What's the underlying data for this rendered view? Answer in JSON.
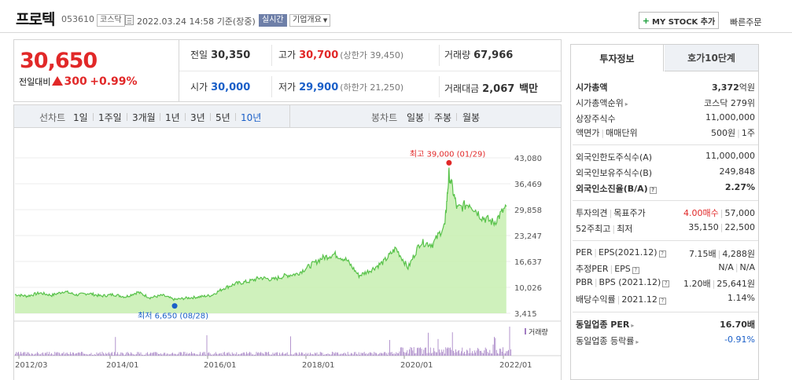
{
  "header": {
    "stock_name": "프로텍",
    "stock_code": "053610",
    "market": "코스닥",
    "time": "2022.03.24 14:58",
    "basis": "기준(장중)",
    "realtime": "실시간",
    "overview": "기업개요",
    "mystock": "MY STOCK 추가",
    "quick_order": "빠른주문"
  },
  "price": {
    "current": "30,650",
    "diff_label": "전일대비",
    "diff_value": "300",
    "diff_pct": "+0.99%"
  },
  "quote": {
    "prev_label": "전일",
    "prev_value": "30,350",
    "high_label": "고가",
    "high_value": "30,700",
    "upper_limit": "(상한가 39,450)",
    "volume_label": "거래량",
    "volume_value": "67,966",
    "open_label": "시가",
    "open_value": "30,000",
    "low_label": "저가",
    "low_value": "29,900",
    "lower_limit": "(하한가 21,250)",
    "amount_label": "거래대금",
    "amount_value": "2,067",
    "amount_unit": "백만"
  },
  "period_bar": {
    "line_label": "선차트",
    "line_periods": [
      "1일",
      "1주일",
      "3개월",
      "1년",
      "3년",
      "5년",
      "10년"
    ],
    "candle_label": "봉차트",
    "candle_periods": [
      "일봉",
      "주봉",
      "월봉"
    ]
  },
  "chart_data": {
    "type": "area",
    "y_ticks": [
      "43,080",
      "36,469",
      "29,858",
      "23,247",
      "16,637",
      "10,026",
      "3,415"
    ],
    "ylim": [
      3415,
      43080
    ],
    "x_ticks": [
      "2012/03",
      "2014/01",
      "2016/01",
      "2018/01",
      "2020/01",
      "2022/01"
    ],
    "high_annotation": "최고 39,000 (01/29)",
    "low_annotation": "최저 6,650 (08/28)",
    "volume_legend": "거래량",
    "series": [
      {
        "x": [
          "2012-03",
          "2012-06",
          "2012-09",
          "2012-12",
          "2013-03",
          "2013-06",
          "2013-09",
          "2013-12",
          "2014-03",
          "2014-06",
          "2014-09",
          "2014-12",
          "2015-03",
          "2015-06",
          "2015-09",
          "2015-12",
          "2016-03",
          "2016-06",
          "2016-09",
          "2016-12",
          "2017-03",
          "2017-06",
          "2017-09",
          "2017-12",
          "2018-03",
          "2018-06",
          "2018-09",
          "2018-12",
          "2019-03",
          "2019-06",
          "2019-09",
          "2019-12",
          "2020-03",
          "2020-06",
          "2020-09",
          "2020-12",
          "2021-01",
          "2021-03",
          "2021-06",
          "2021-09",
          "2021-12",
          "2022-03"
        ],
        "values": [
          8200,
          7800,
          8600,
          8000,
          9000,
          8100,
          8500,
          7800,
          8200,
          7600,
          8800,
          7400,
          8000,
          6900,
          7300,
          7600,
          8000,
          9800,
          11000,
          11500,
          12500,
          12000,
          13000,
          13500,
          15500,
          17500,
          18500,
          17000,
          13000,
          14500,
          16500,
          20000,
          15000,
          21500,
          21000,
          26000,
          39000,
          30000,
          31500,
          28000,
          26500,
          30650
        ]
      }
    ]
  },
  "side": {
    "tab_info": "투자정보",
    "tab_hoga": "호가10단계",
    "rows": [
      {
        "l": "시가총액",
        "r1": "3,372",
        "r2": "억원"
      },
      {
        "l": "시가총액순위",
        "r1": "코스닥 279위"
      },
      {
        "l": "상장주식수",
        "r1": "11,000,000"
      },
      {
        "l1": "액면가",
        "l2": "매매단위",
        "r1": "500원",
        "r2": "1주"
      },
      {
        "l": "외국인한도주식수(A)",
        "r1": "11,000,000"
      },
      {
        "l": "외국인보유주식수(B)",
        "r1": "249,848"
      },
      {
        "l": "외국인소진율(B/A)",
        "r1": "2.27%"
      },
      {
        "l1": "투자의견",
        "l2": "목표주가",
        "r1": "4.00매수",
        "r2": "57,000"
      },
      {
        "l1": "52주최고",
        "l2": "최저",
        "r1": "35,150",
        "r2": "22,500"
      },
      {
        "l1": "PER",
        "l2": "EPS(2021.12)",
        "r1": "7.15배",
        "r2": "4,288원"
      },
      {
        "l1": "추정PER",
        "l2": "EPS",
        "r1": "N/A",
        "r2": "N/A"
      },
      {
        "l1": "PBR",
        "l2": "BPS (2021.12)",
        "r1": "1.20배",
        "r2": "25,641원"
      },
      {
        "l1": "배당수익률",
        "l2": "2021.12",
        "r1": "1.14%"
      },
      {
        "l": "동일업종 PER",
        "r1": "16.70배"
      },
      {
        "l": "동일업종 등락률",
        "r1": "-0.91%"
      }
    ]
  },
  "colors": {
    "up": "#e12828",
    "down": "#1a5fc8",
    "area_fill": "#c7efb0",
    "area_line": "#58c24a",
    "volume": "#a17bc2"
  }
}
